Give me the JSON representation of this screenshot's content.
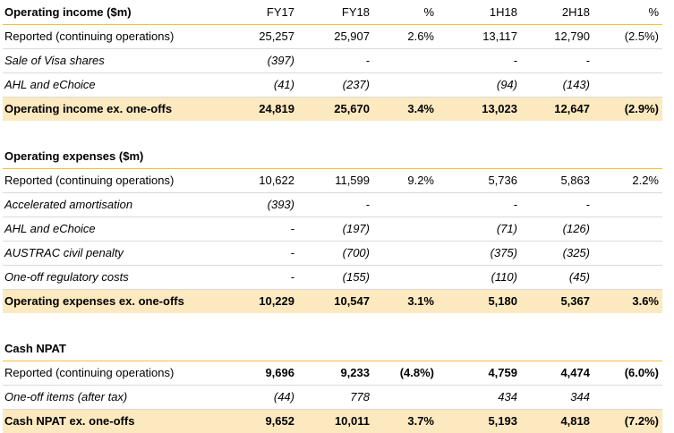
{
  "sections": [
    {
      "header": {
        "label": "Operating income ($m)",
        "cols": [
          "FY17",
          "FY18",
          "%",
          "1H18",
          "2H18",
          "%"
        ]
      },
      "rows": [
        {
          "label": "Reported (continuing operations)",
          "italic": false,
          "cols": [
            "25,257",
            "25,907",
            "2.6%",
            "13,117",
            "12,790",
            "(2.5%)"
          ]
        },
        {
          "label": "Sale of Visa shares",
          "italic": true,
          "cols": [
            "(397)",
            "-",
            "",
            "-",
            "-",
            ""
          ]
        },
        {
          "label": "AHL and eChoice",
          "italic": true,
          "cols": [
            "(41)",
            "(237)",
            "",
            "(94)",
            "(143)",
            ""
          ]
        }
      ],
      "total": {
        "label": "Operating income ex. one-offs",
        "cols": [
          "24,819",
          "25,670",
          "3.4%",
          "13,023",
          "12,647",
          "(2.9%)"
        ]
      }
    },
    {
      "header": {
        "label": "Operating expenses ($m)",
        "cols": [
          "",
          "",
          "",
          "",
          "",
          ""
        ]
      },
      "rows": [
        {
          "label": "Reported (continuing operations)",
          "italic": false,
          "cols": [
            "10,622",
            "11,599",
            "9.2%",
            "5,736",
            "5,863",
            "2.2%"
          ]
        },
        {
          "label": "Accelerated amortisation",
          "italic": true,
          "cols": [
            "(393)",
            "-",
            "",
            "-",
            "-",
            ""
          ]
        },
        {
          "label": "AHL and eChoice",
          "italic": true,
          "cols": [
            "-",
            "(197)",
            "",
            "(71)",
            "(126)",
            ""
          ]
        },
        {
          "label": "AUSTRAC civil penalty",
          "italic": true,
          "cols": [
            "-",
            "(700)",
            "",
            "(375)",
            "(325)",
            ""
          ]
        },
        {
          "label": "One-off regulatory costs",
          "italic": true,
          "cols": [
            "-",
            "(155)",
            "",
            "(110)",
            "(45)",
            ""
          ]
        }
      ],
      "total": {
        "label": "Operating expenses ex. one-offs",
        "cols": [
          "10,229",
          "10,547",
          "3.1%",
          "5,180",
          "5,367",
          "3.6%"
        ]
      }
    },
    {
      "header": {
        "label": "Cash NPAT",
        "cols": [
          "",
          "",
          "",
          "",
          "",
          ""
        ]
      },
      "rows": [
        {
          "label": "Reported (continuing operations)",
          "italic": false,
          "bold_nums": true,
          "cols": [
            "9,696",
            "9,233",
            "(4.8%)",
            "4,759",
            "4,474",
            "(6.0%)"
          ]
        },
        {
          "label": "One-off items (after tax)",
          "italic": true,
          "cols": [
            "(44)",
            "778",
            "",
            "434",
            "344",
            ""
          ]
        }
      ],
      "total": {
        "label": "Cash NPAT ex. one-offs",
        "cols": [
          "9,652",
          "10,011",
          "3.7%",
          "5,193",
          "4,818",
          "(7.2%)"
        ]
      }
    }
  ],
  "colors": {
    "header_rule": "#f2c12e",
    "total_bg": "#fde9bf",
    "row_rule": "#d9d9d9"
  }
}
